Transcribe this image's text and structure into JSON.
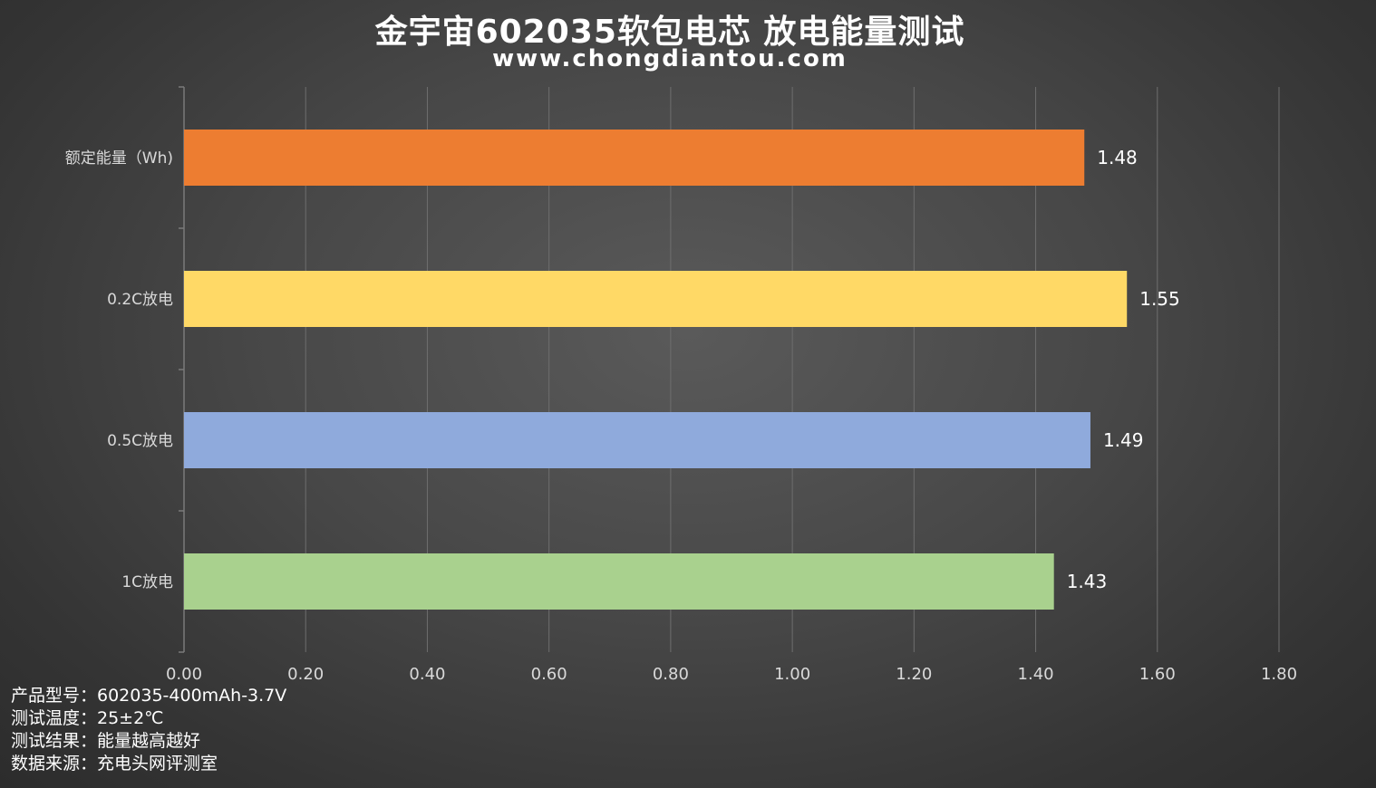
{
  "header": {
    "title": "金宇宙602035软包电芯 放电能量测试",
    "subtitle": "www.chongdiantou.com"
  },
  "chart_data": {
    "type": "bar",
    "orientation": "horizontal",
    "categories": [
      "额定能量（Wh)",
      "0.2C放电",
      "0.5C放电",
      "1C放电"
    ],
    "values": [
      1.48,
      1.55,
      1.49,
      1.43
    ],
    "value_labels": [
      "1.48",
      "1.55",
      "1.49",
      "1.43"
    ],
    "colors": [
      "#ed7d31",
      "#ffd966",
      "#8faadc",
      "#a9d18e"
    ],
    "xlim": [
      0,
      1.8
    ],
    "xticks": [
      "0.00",
      "0.20",
      "0.40",
      "0.60",
      "0.80",
      "1.00",
      "1.20",
      "1.40",
      "1.60",
      "1.80"
    ],
    "grid": true,
    "legend": false
  },
  "notes": [
    "产品型号：602035-400mAh-3.7V",
    "测试温度：25±2℃",
    "测试结果：能量越高越好",
    "数据来源：充电头网评测室"
  ]
}
